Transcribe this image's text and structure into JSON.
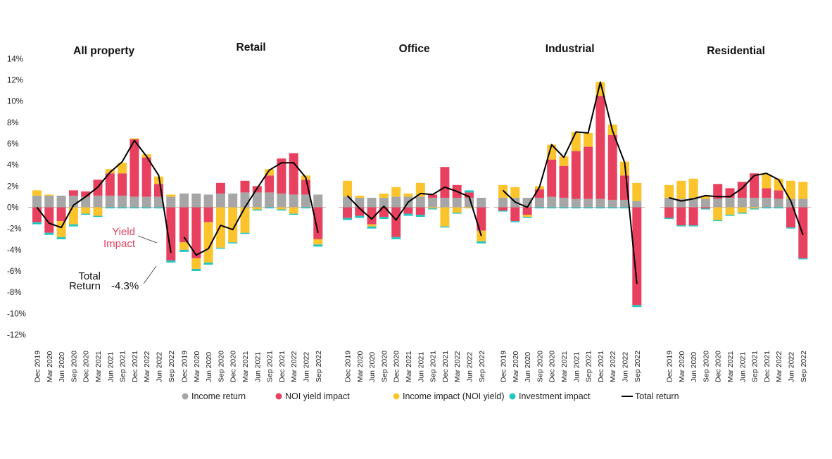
{
  "chart_data": {
    "type": "bar",
    "stacked": true,
    "ylim": [
      -12,
      14
    ],
    "yticks": [
      "14%",
      "12%",
      "10%",
      "8%",
      "6%",
      "4%",
      "2%",
      "0%",
      "-2%",
      "-4%",
      "-6%",
      "-8%",
      "-10%",
      "-12%"
    ],
    "grid": false,
    "legend_position": "bottom",
    "categories": [
      "Dec 2019",
      "Mar 2020",
      "Jun 2020",
      "Sep 2020",
      "Dec 2020",
      "Mar 2021",
      "Jun 2021",
      "Sep 2021",
      "Dec 2021",
      "Mar 2022",
      "Jun 2022",
      "Sep 2022"
    ],
    "colors": {
      "income_return": "#a6a6a6",
      "noi_yield_impact": "#e8405f",
      "income_impact": "#fcc42c",
      "investment_impact": "#27c4c0",
      "total_return": "#000000",
      "zero_line": "#bfbfbf",
      "axis_text": "#222222",
      "annotation_yield": "#e8405f"
    },
    "legend": [
      {
        "key": "income_return",
        "label": "Income return",
        "marker": "circle"
      },
      {
        "key": "noi_yield_impact",
        "label": "NOI yield impact",
        "marker": "circle"
      },
      {
        "key": "income_impact",
        "label": "Income impact (NOI yield)",
        "marker": "circle"
      },
      {
        "key": "investment_impact",
        "label": "Investment impact",
        "marker": "circle"
      },
      {
        "key": "total_return",
        "label": "Total return",
        "marker": "line"
      }
    ],
    "panels": [
      {
        "title": "All property",
        "series": {
          "income_return": [
            1.1,
            1.1,
            1.1,
            1.1,
            1.0,
            1.1,
            1.1,
            1.1,
            1.0,
            1.0,
            1.0,
            1.0
          ],
          "noi_yield_impact": [
            -1.4,
            -2.4,
            -1.3,
            0.5,
            0.5,
            1.5,
            2.1,
            2.1,
            5.4,
            3.7,
            1.2,
            -5.0
          ],
          "income_impact": [
            0.5,
            0.1,
            -1.5,
            -1.6,
            -0.6,
            -0.8,
            0.4,
            1.0,
            0.1,
            0.3,
            0.7,
            0.2
          ],
          "investment_impact": [
            -0.2,
            -0.2,
            -0.2,
            -0.2,
            -0.1,
            -0.1,
            -0.1,
            -0.1,
            -0.1,
            -0.1,
            -0.1,
            -0.2
          ]
        },
        "total_return": [
          0.0,
          -1.5,
          -1.9,
          0.2,
          1.0,
          1.9,
          3.3,
          4.3,
          6.3,
          4.8,
          3.0,
          -4.3
        ]
      },
      {
        "title": "Retail",
        "series": {
          "income_return": [
            1.3,
            1.3,
            1.2,
            1.3,
            1.3,
            1.4,
            1.4,
            1.4,
            1.3,
            1.2,
            1.2,
            1.2
          ],
          "noi_yield_impact": [
            -3.3,
            -4.8,
            -1.4,
            1.0,
            0.0,
            1.1,
            0.6,
            1.6,
            3.3,
            3.9,
            1.4,
            -3.0
          ],
          "income_impact": [
            -0.7,
            -1.0,
            -3.8,
            -3.8,
            -3.3,
            -2.4,
            -0.2,
            0.6,
            -0.2,
            -0.6,
            0.4,
            -0.5
          ],
          "investment_impact": [
            -0.2,
            -0.2,
            -0.2,
            -0.1,
            -0.1,
            -0.1,
            -0.1,
            -0.1,
            -0.1,
            -0.1,
            -0.1,
            -0.2
          ]
        },
        "total_return": [
          -2.8,
          -4.5,
          -3.9,
          -1.7,
          -2.1,
          0.0,
          1.8,
          3.5,
          4.2,
          4.2,
          2.8,
          -2.4
        ]
      },
      {
        "title": "Office",
        "series": {
          "income_return": [
            1.0,
            0.9,
            0.9,
            0.9,
            1.0,
            1.0,
            1.0,
            0.9,
            0.9,
            0.9,
            0.9,
            0.9
          ],
          "noi_yield_impact": [
            -1.0,
            -0.8,
            -1.6,
            -0.9,
            -2.8,
            -0.6,
            -0.7,
            0.3,
            2.9,
            1.2,
            0.5,
            -2.2
          ],
          "income_impact": [
            1.5,
            0.2,
            -0.2,
            0.4,
            0.9,
            0.3,
            1.3,
            -0.1,
            -1.8,
            -0.5,
            -0.1,
            -1.0
          ],
          "investment_impact": [
            -0.2,
            -0.2,
            -0.2,
            -0.2,
            -0.2,
            -0.2,
            -0.2,
            -0.1,
            -0.1,
            -0.1,
            0.2,
            -0.2
          ]
        },
        "total_return": [
          1.1,
          -0.1,
          -1.1,
          0.1,
          -1.2,
          0.5,
          1.3,
          1.2,
          1.9,
          1.5,
          1.0,
          -2.7
        ]
      },
      {
        "title": "Industrial",
        "series": {
          "income_return": [
            0.9,
            0.9,
            0.9,
            0.9,
            1.0,
            0.9,
            0.8,
            0.8,
            0.8,
            0.7,
            0.7,
            0.6
          ],
          "noi_yield_impact": [
            -0.3,
            -1.3,
            -0.7,
            0.8,
            3.5,
            3.0,
            4.5,
            4.9,
            9.7,
            6.1,
            2.3,
            -9.2
          ],
          "income_impact": [
            1.2,
            1.0,
            -0.2,
            0.3,
            1.4,
            0.9,
            1.8,
            1.3,
            1.3,
            1.0,
            1.3,
            1.7
          ],
          "investment_impact": [
            -0.1,
            -0.1,
            -0.1,
            -0.1,
            -0.1,
            -0.1,
            -0.1,
            -0.1,
            -0.1,
            -0.1,
            -0.1,
            -0.2
          ]
        },
        "total_return": [
          1.6,
          0.5,
          0.0,
          1.9,
          5.9,
          4.7,
          7.1,
          7.0,
          11.8,
          7.2,
          4.2,
          -7.2
        ]
      },
      {
        "title": "Residential",
        "series": {
          "income_return": [
            0.9,
            0.8,
            0.9,
            0.8,
            0.8,
            0.9,
            0.9,
            0.9,
            0.9,
            0.8,
            0.8,
            0.8
          ],
          "noi_yield_impact": [
            -1.0,
            -1.7,
            -1.7,
            -0.1,
            1.4,
            0.9,
            1.5,
            2.3,
            0.9,
            0.8,
            -1.9,
            -4.8
          ],
          "income_impact": [
            1.2,
            1.7,
            1.8,
            0.3,
            -1.2,
            -0.7,
            -0.5,
            -0.1,
            1.3,
            1.1,
            1.7,
            1.6
          ],
          "investment_impact": [
            -0.1,
            -0.1,
            -0.1,
            -0.1,
            -0.1,
            -0.1,
            -0.1,
            -0.1,
            -0.1,
            -0.1,
            -0.1,
            -0.1
          ]
        },
        "total_return": [
          0.9,
          0.6,
          0.8,
          1.1,
          1.0,
          1.0,
          1.8,
          3.0,
          3.2,
          2.6,
          0.6,
          -2.6
        ]
      }
    ],
    "annotations": {
      "yield_impact": [
        "Yield",
        "Impact"
      ],
      "total_return": [
        "Total",
        "Return"
      ],
      "total_return_value": "-4.3%"
    }
  }
}
